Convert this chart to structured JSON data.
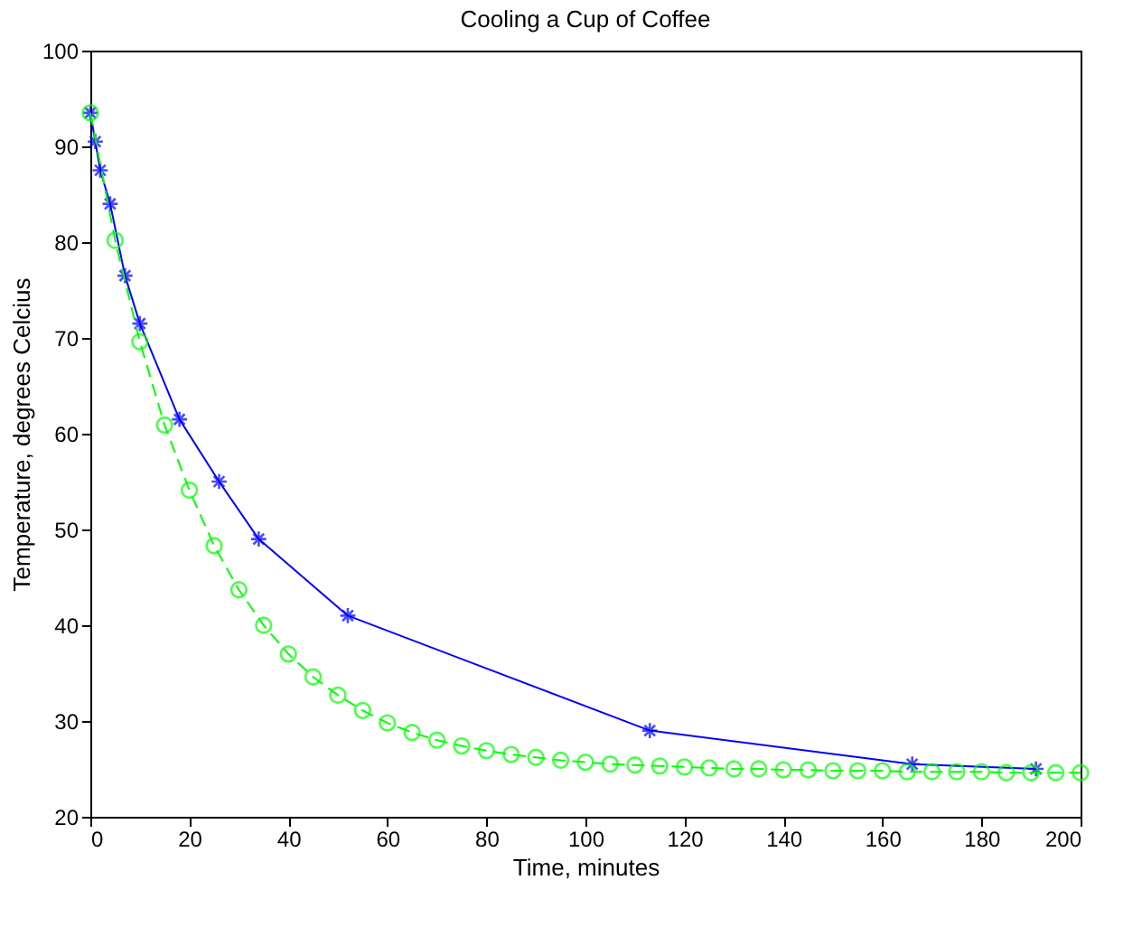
{
  "chart_data": {
    "type": "line",
    "title": "Cooling a Cup of Coffee",
    "xlabel": "Time, minutes",
    "ylabel": "Temperature, degrees Celcius",
    "xlim": [
      0,
      200
    ],
    "xticks": [
      0,
      20,
      40,
      60,
      80,
      100,
      120,
      140,
      160,
      180,
      200
    ],
    "ylim": [
      20,
      100
    ],
    "yticks": [
      20,
      30,
      40,
      50,
      60,
      70,
      80,
      90,
      100
    ],
    "grid": false,
    "series": [
      {
        "color": "#0000ff",
        "marker": "cross",
        "line_style": "solid",
        "x": [
          0,
          1,
          2,
          4,
          7,
          10,
          18,
          26,
          34,
          52,
          113,
          166,
          191
        ],
        "values": [
          93.5,
          90.5,
          87.5,
          84,
          76.5,
          71.5,
          61.5,
          55,
          49,
          41,
          29,
          25.5,
          25
        ]
      },
      {
        "color": "#00ff00",
        "marker": "circle",
        "line_style": "dashed",
        "x": [
          0,
          5,
          10,
          15,
          20,
          25,
          30,
          35,
          40,
          45,
          50,
          55,
          60,
          65,
          70,
          75,
          80,
          85,
          90,
          95,
          100,
          105,
          110,
          115,
          120,
          125,
          130,
          135,
          140,
          145,
          150,
          155,
          160,
          165,
          170,
          175,
          180,
          185,
          190,
          195,
          200
        ],
        "values": [
          93.5,
          80.2,
          69.6,
          60.9,
          54.1,
          48.3,
          43.7,
          40,
          37,
          34.6,
          32.7,
          31.1,
          29.8,
          28.8,
          28,
          27.4,
          26.9,
          26.5,
          26.2,
          25.9,
          25.7,
          25.5,
          25.4,
          25.3,
          25.2,
          25.1,
          25,
          25,
          24.9,
          24.9,
          24.8,
          24.8,
          24.8,
          24.7,
          24.7,
          24.7,
          24.7,
          24.6,
          24.6,
          24.6,
          24.6
        ]
      }
    ]
  }
}
